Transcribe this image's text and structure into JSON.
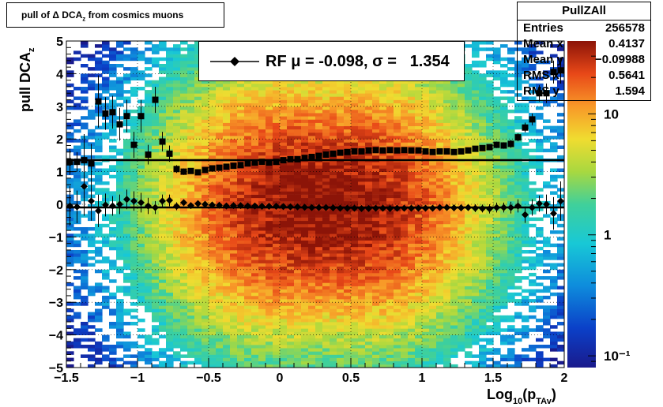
{
  "title": "pull of Δ DCA",
  "title_sub": "z",
  "title_suffix": " from cosmics muons",
  "stats": {
    "name": "PullZAll",
    "rows": [
      {
        "key": "Entries",
        "value": "256578"
      },
      {
        "key": "Mean x",
        "value": "0.4137"
      },
      {
        "key": "Mean y",
        "value": "−0.09988"
      },
      {
        "key": "RMS x",
        "value": "0.5641"
      },
      {
        "key": "RMS y",
        "value": "1.594"
      }
    ]
  },
  "legend": {
    "label": "RF μ = -0.098, σ =   1.354"
  },
  "chart_data": {
    "type": "heatmap",
    "title": "pull of Δ DCAz from cosmics muons",
    "xlabel": "Log10(pTAv)",
    "ylabel": "pull DCAz",
    "xlim": [
      -1.5,
      2
    ],
    "ylim": [
      -5,
      5
    ],
    "x_ticks": [
      "−1.5",
      "−1",
      "−0.5",
      "0",
      "0.5",
      "1",
      "1.5",
      "2"
    ],
    "x_tick_values": [
      -1.5,
      -1,
      -0.5,
      0,
      0.5,
      1,
      1.5,
      2
    ],
    "y_ticks": [
      "−5",
      "−4",
      "−3",
      "−2",
      "−1",
      "0",
      "1",
      "2",
      "3",
      "4",
      "5"
    ],
    "y_tick_values": [
      -5,
      -4,
      -3,
      -2,
      -1,
      0,
      1,
      2,
      3,
      4,
      5
    ],
    "z_scale": "log",
    "z_ticks": [
      "10⁻¹",
      "1",
      "10"
    ],
    "z_tick_values": [
      0.1,
      1,
      10
    ],
    "z_range": [
      0.08,
      40
    ],
    "grid": true,
    "fit_lines": [
      {
        "name": "mean",
        "y": -0.098
      },
      {
        "name": "sigma",
        "y": 1.354
      }
    ],
    "series": [
      {
        "name": "mean",
        "marker": "diamond",
        "x": [
          -1.475,
          -1.425,
          -1.375,
          -1.325,
          -1.275,
          -1.225,
          -1.175,
          -1.125,
          -1.075,
          -1.025,
          -0.975,
          -0.925,
          -0.875,
          -0.825,
          -0.775,
          -0.725,
          -0.675,
          -0.625,
          -0.575,
          -0.525,
          -0.475,
          -0.425,
          -0.375,
          -0.325,
          -0.275,
          -0.225,
          -0.175,
          -0.125,
          -0.075,
          -0.025,
          0.025,
          0.075,
          0.125,
          0.175,
          0.225,
          0.275,
          0.325,
          0.375,
          0.425,
          0.475,
          0.525,
          0.575,
          0.625,
          0.675,
          0.725,
          0.775,
          0.825,
          0.875,
          0.925,
          0.975,
          1.025,
          1.075,
          1.125,
          1.175,
          1.225,
          1.275,
          1.325,
          1.375,
          1.425,
          1.475,
          1.525,
          1.575,
          1.625,
          1.675,
          1.725,
          1.775,
          1.825,
          1.875,
          1.925,
          1.975
        ],
        "y": [
          -0.05,
          -0.08,
          0.55,
          0.1,
          -0.2,
          -0.02,
          -0.05,
          0.0,
          0.15,
          0.1,
          0.05,
          -0.05,
          -0.1,
          0.1,
          0.12,
          -0.06,
          0.05,
          -0.04,
          0.02,
          0.0,
          -0.02,
          -0.03,
          -0.05,
          -0.04,
          -0.04,
          -0.05,
          -0.05,
          -0.06,
          -0.06,
          -0.06,
          -0.07,
          -0.08,
          -0.08,
          -0.09,
          -0.1,
          -0.1,
          -0.1,
          -0.11,
          -0.12,
          -0.12,
          -0.12,
          -0.13,
          -0.13,
          -0.12,
          -0.12,
          -0.13,
          -0.12,
          -0.12,
          -0.12,
          -0.12,
          -0.12,
          -0.12,
          -0.1,
          -0.1,
          -0.11,
          -0.11,
          -0.1,
          -0.12,
          -0.13,
          -0.14,
          -0.1,
          -0.1,
          -0.1,
          -0.05,
          -0.32,
          -0.1,
          0.02,
          0.0,
          -0.28,
          0.1
        ],
        "yerr": [
          0.6,
          0.5,
          0.9,
          0.6,
          0.5,
          0.35,
          0.3,
          0.3,
          0.3,
          0.3,
          0.3,
          0.25,
          0.2,
          0.2,
          0.18,
          0.12,
          0.1,
          0.08,
          0.06,
          0.05,
          0.04,
          0.04,
          0.04,
          0.03,
          0.03,
          0.03,
          0.03,
          0.03,
          0.03,
          0.03,
          0.03,
          0.03,
          0.03,
          0.03,
          0.03,
          0.03,
          0.03,
          0.03,
          0.03,
          0.03,
          0.03,
          0.04,
          0.04,
          0.04,
          0.04,
          0.05,
          0.05,
          0.05,
          0.06,
          0.06,
          0.07,
          0.07,
          0.08,
          0.09,
          0.1,
          0.1,
          0.1,
          0.12,
          0.12,
          0.14,
          0.15,
          0.15,
          0.18,
          0.2,
          0.25,
          0.25,
          0.25,
          0.3,
          0.5,
          0.6
        ]
      },
      {
        "name": "sigma",
        "marker": "square",
        "x": [
          -1.475,
          -1.425,
          -1.375,
          -1.325,
          -1.275,
          -1.225,
          -1.175,
          -1.125,
          -1.075,
          -1.025,
          -0.975,
          -0.925,
          -0.875,
          -0.825,
          -0.775,
          -0.725,
          -0.675,
          -0.625,
          -0.575,
          -0.525,
          -0.475,
          -0.425,
          -0.375,
          -0.325,
          -0.275,
          -0.225,
          -0.175,
          -0.125,
          -0.075,
          -0.025,
          0.025,
          0.075,
          0.125,
          0.175,
          0.225,
          0.275,
          0.325,
          0.375,
          0.425,
          0.475,
          0.525,
          0.575,
          0.625,
          0.675,
          0.725,
          0.775,
          0.825,
          0.875,
          0.925,
          0.975,
          1.025,
          1.075,
          1.125,
          1.175,
          1.225,
          1.275,
          1.325,
          1.375,
          1.425,
          1.475,
          1.525,
          1.575,
          1.625,
          1.675,
          1.725,
          1.775,
          1.825,
          1.875,
          1.925,
          1.975
        ],
        "y": [
          1.3,
          1.3,
          1.35,
          1.25,
          3.15,
          2.78,
          2.82,
          2.45,
          2.7,
          1.82,
          2.7,
          1.52,
          3.2,
          1.92,
          1.55,
          1.08,
          1.0,
          1.02,
          0.98,
          1.05,
          1.1,
          1.12,
          1.15,
          1.18,
          1.2,
          1.25,
          1.28,
          1.3,
          1.28,
          1.3,
          1.35,
          1.38,
          1.38,
          1.42,
          1.45,
          1.48,
          1.52,
          1.55,
          1.58,
          1.6,
          1.62,
          1.62,
          1.65,
          1.66,
          1.65,
          1.66,
          1.65,
          1.66,
          1.65,
          1.65,
          1.62,
          1.6,
          1.62,
          1.62,
          1.6,
          1.62,
          1.65,
          1.7,
          1.72,
          1.75,
          1.82,
          1.8,
          1.85,
          2.05,
          2.35,
          2.6,
          3.4,
          3.4,
          4.05,
          4.1
        ],
        "yerr": [
          0.4,
          0.3,
          0.8,
          0.6,
          0.8,
          0.5,
          0.5,
          0.5,
          0.5,
          0.4,
          0.5,
          0.3,
          0.4,
          0.3,
          0.25,
          0.12,
          0.1,
          0.08,
          0.06,
          0.05,
          0.04,
          0.04,
          0.04,
          0.03,
          0.03,
          0.03,
          0.03,
          0.03,
          0.03,
          0.03,
          0.03,
          0.03,
          0.03,
          0.03,
          0.03,
          0.03,
          0.03,
          0.03,
          0.03,
          0.03,
          0.03,
          0.04,
          0.04,
          0.04,
          0.04,
          0.04,
          0.05,
          0.05,
          0.05,
          0.05,
          0.05,
          0.06,
          0.06,
          0.06,
          0.07,
          0.07,
          0.08,
          0.08,
          0.09,
          0.09,
          0.1,
          0.1,
          0.12,
          0.12,
          0.15,
          0.18,
          0.25,
          0.3,
          0.35,
          0.4
        ]
      }
    ]
  }
}
